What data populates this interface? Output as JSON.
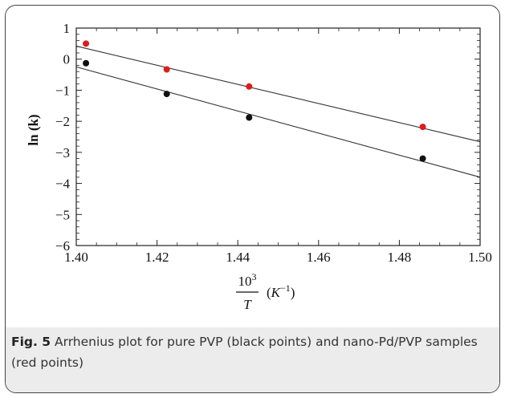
{
  "chart_data": {
    "type": "scatter",
    "title": "",
    "xlabel": {
      "numerator": "10",
      "exponent": "3",
      "denominator": "T",
      "unit_open": "(",
      "unit_var": "K",
      "unit_exp": "−1",
      "unit_close": ")"
    },
    "ylabel": "ln (k)",
    "xlim": [
      1.4,
      1.5
    ],
    "ylim": [
      -6,
      1
    ],
    "xticks": [
      "1.40",
      "1.42",
      "1.44",
      "1.46",
      "1.48",
      "1.50"
    ],
    "yticks": [
      "1",
      "0",
      "−1",
      "−2",
      "−3",
      "−4",
      "−5",
      "−6"
    ],
    "grid": false,
    "series": [
      {
        "color": "#e01b1b",
        "x": [
          1.4024,
          1.4224,
          1.4428,
          1.4858
        ],
        "y": [
          0.5,
          -0.33,
          -0.88,
          -2.18
        ],
        "fit": {
          "x0": 1.4,
          "y0": 0.42,
          "x1": 1.5,
          "y1": -2.66
        }
      },
      {
        "color": "#111111",
        "x": [
          1.4024,
          1.4224,
          1.4428,
          1.4858
        ],
        "y": [
          -0.13,
          -1.12,
          -1.88,
          -3.2
        ],
        "fit": {
          "x0": 1.4,
          "y0": -0.25,
          "x1": 1.5,
          "y1": -3.8
        }
      }
    ]
  },
  "caption": {
    "label": "Fig. 5",
    "text": " Arrhenius plot for pure PVP (black points) and nano-Pd/PVP samples (red points)"
  }
}
